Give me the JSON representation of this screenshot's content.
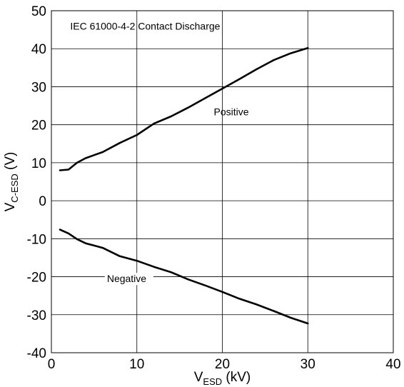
{
  "chart_data": {
    "type": "line",
    "title": "",
    "annotation": "IEC 61000-4-2 Contact Discharge",
    "xlabel": {
      "main": "V",
      "sub": "ESD",
      "unit": " (kV)"
    },
    "ylabel": {
      "main": "V",
      "sub": "C-ESD",
      "unit": " (V)"
    },
    "xlim": [
      0,
      40
    ],
    "ylim": [
      -40,
      50
    ],
    "xticks": [
      0,
      10,
      20,
      30,
      40
    ],
    "yticks": [
      -40,
      -30,
      -20,
      -10,
      0,
      10,
      20,
      30,
      40,
      50
    ],
    "grid": true,
    "line_color": "#000000",
    "series": [
      {
        "name": "Positive",
        "x": [
          1,
          2,
          3,
          4,
          5,
          6,
          8,
          10,
          12,
          14,
          16,
          18,
          20,
          22,
          24,
          26,
          28,
          30
        ],
        "y": [
          8,
          8.2,
          10,
          11.2,
          12,
          12.8,
          15.2,
          17.3,
          20.3,
          22.2,
          24.5,
          27,
          29.5,
          32,
          34.6,
          37,
          38.8,
          40.2
        ]
      },
      {
        "name": "Negative",
        "x": [
          1,
          2,
          3,
          4,
          5,
          6,
          8,
          10,
          12,
          14,
          16,
          18,
          20,
          22,
          24,
          26,
          28,
          30
        ],
        "y": [
          -7.6,
          -8.6,
          -10.1,
          -11.2,
          -11.8,
          -12.4,
          -14.6,
          -15.8,
          -17.4,
          -18.8,
          -20.7,
          -22.3,
          -24,
          -25.8,
          -27.3,
          -29,
          -30.8,
          -32.3
        ]
      }
    ]
  }
}
